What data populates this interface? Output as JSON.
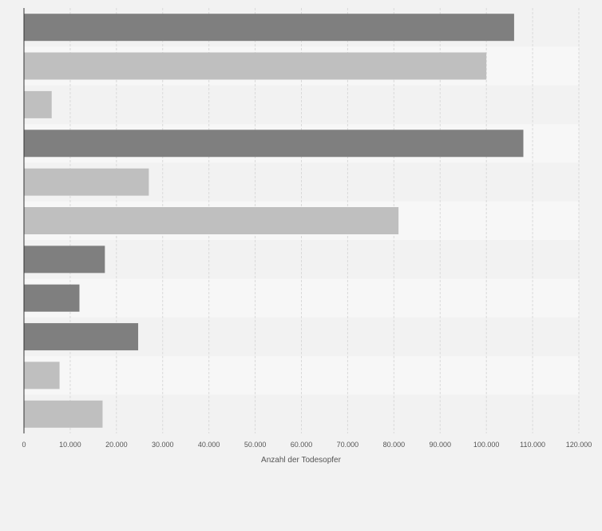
{
  "chart_data": {
    "type": "bar",
    "orientation": "horizontal",
    "title": "",
    "xlabel": "Anzahl der Todesopfer",
    "ylabel": "",
    "categories": [
      "",
      "",
      "",
      "",
      "",
      "",
      "",
      "",
      "",
      "",
      ""
    ],
    "values": [
      106000,
      100000,
      6000,
      108000,
      27000,
      81000,
      17500,
      12000,
      24700,
      7700,
      17000
    ],
    "bar_colors": [
      "#7f7f7f",
      "#bfbfbf",
      "#bfbfbf",
      "#7f7f7f",
      "#bfbfbf",
      "#bfbfbf",
      "#7f7f7f",
      "#7f7f7f",
      "#7f7f7f",
      "#bfbfbf",
      "#bfbfbf"
    ],
    "xlim": [
      0,
      120000
    ],
    "xticks": [
      0,
      10000,
      20000,
      30000,
      40000,
      50000,
      60000,
      70000,
      80000,
      90000,
      100000,
      110000,
      120000
    ],
    "xtick_labels": [
      "0",
      "10.000",
      "20.000",
      "30.000",
      "40.000",
      "50.000",
      "60.000",
      "70.000",
      "80.000",
      "90.000",
      "100.000",
      "110.000",
      "120.000"
    ],
    "grid": true,
    "legend": "none"
  },
  "colors": {
    "background": "#f2f2f2",
    "band_light": "#f7f7f7",
    "band_dark": "#f2f2f2",
    "grid": "#d9d9d9",
    "axis": "#333333",
    "tick_text": "#555555"
  }
}
